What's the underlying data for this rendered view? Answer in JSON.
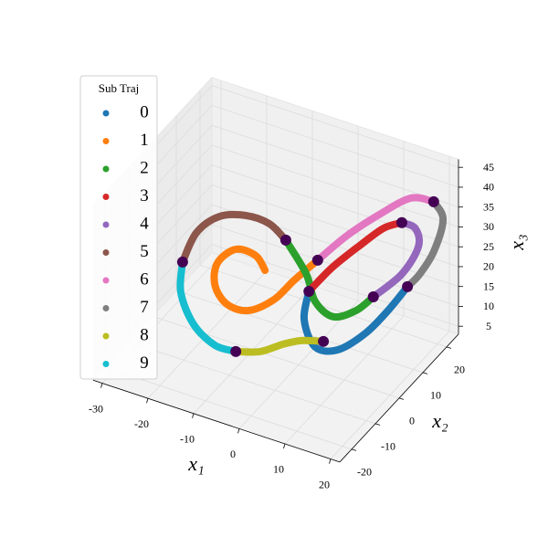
{
  "chart_data": {
    "type": "scatter3d",
    "legend_title": "Sub Traj",
    "xlabel": "x₁",
    "ylabel": "x₂",
    "zlabel": "x₃",
    "xlim": [
      -32,
      22
    ],
    "ylim": [
      -25,
      25
    ],
    "zlim": [
      3,
      47
    ],
    "xticks": [
      -30,
      -20,
      -10,
      0,
      10,
      20
    ],
    "yticks": [
      -20,
      -10,
      0,
      10,
      20
    ],
    "zticks": [
      5,
      10,
      15,
      20,
      25,
      30,
      35,
      40,
      45
    ],
    "grid": true,
    "legend": "upper left",
    "marker_color": "#440154",
    "series": [
      {
        "name": "0",
        "color": "#1f77b4",
        "x": [
          -2.9,
          -3.0,
          1.2,
          6.7,
          10.6,
          12.7,
          14.1
        ],
        "y": [
          9.9,
          8.1,
          4.6,
          3.6,
          7.7,
          13.2,
          18.7
        ],
        "z": [
          14,
          8,
          5,
          7,
          10,
          13,
          16
        ]
      },
      {
        "name": "1",
        "color": "#ff7f0e",
        "x": [
          -0.1,
          -3.4,
          -5.0,
          -8.2,
          -12.2,
          -14.7,
          -14.6,
          -11.8,
          -8.1,
          -5.5
        ],
        "y": [
          8.2,
          4.6,
          -0.8,
          -5.4,
          -6.8,
          -7.0,
          -6.1,
          -3.8,
          -2.5,
          -3.6
        ],
        "z": [
          24,
          20,
          18,
          17,
          18,
          22,
          27,
          30,
          29,
          27
        ]
      },
      {
        "name": "2",
        "color": "#2ca02c",
        "x": [
          -6.1,
          -3.6,
          -0.3,
          4.5,
          8.6,
          11.2
        ],
        "y": [
          6.3,
          10.1,
          7.5,
          5.9,
          7.7,
          9.9
        ],
        "z": [
          28,
          18,
          14,
          13,
          15,
          18
        ]
      },
      {
        "name": "3",
        "color": "#d62728",
        "x": [
          13.7,
          10.9,
          7.8,
          4.1,
          0.8
        ],
        "y": [
          17.1,
          14.8,
          11.2,
          6.7,
          4.2
        ],
        "z": [
          33,
          32,
          29,
          25,
          20
        ]
      },
      {
        "name": "4",
        "color": "#9467bd",
        "x": [
          11.2,
          14.9,
          16.5,
          15.6,
          13.7
        ],
        "y": [
          9.9,
          14.8,
          18.7,
          19.1,
          17.1
        ],
        "z": [
          18,
          22,
          27,
          31,
          33
        ]
      },
      {
        "name": "5",
        "color": "#8c564b",
        "x": [
          -24.9,
          -22.2,
          -17.8,
          -12.8,
          -8.9,
          -6.1
        ],
        "y": [
          -1.0,
          -0.4,
          0.8,
          2.6,
          4.8,
          6.3
        ],
        "z": [
          20,
          28,
          33,
          34,
          32,
          28
        ]
      },
      {
        "name": "6",
        "color": "#e377c2",
        "x": [
          20.1,
          15.1,
          9.9,
          4.7,
          -0.1
        ],
        "y": [
          18.2,
          18.2,
          14.9,
          11.4,
          8.2
        ],
        "z": [
          40,
          39,
          35,
          30,
          24
        ]
      },
      {
        "name": "7",
        "color": "#7f7f7f",
        "x": [
          14.1,
          17.9,
          19.8,
          20.7,
          20.1
        ],
        "y": [
          18.7,
          16.6,
          18.9,
          21.0,
          18.2
        ],
        "z": [
          16,
          22,
          27,
          34,
          40
        ]
      },
      {
        "name": "8",
        "color": "#bcbd22",
        "x": [
          3.6,
          -0.2,
          -2.7,
          -5.4,
          -9.5
        ],
        "y": [
          3.5,
          1.6,
          -1.3,
          -5.8,
          -8.2
        ],
        "z": [
          8,
          8,
          8,
          8,
          8
        ]
      },
      {
        "name": "9",
        "color": "#17becf",
        "x": [
          -9.5,
          -14.0,
          -19.6,
          -24.2,
          -24.9
        ],
        "y": [
          -8.2,
          -8.4,
          -6.6,
          -3.1,
          -1.0
        ],
        "z": [
          8,
          8,
          10,
          14,
          20
        ]
      }
    ]
  }
}
